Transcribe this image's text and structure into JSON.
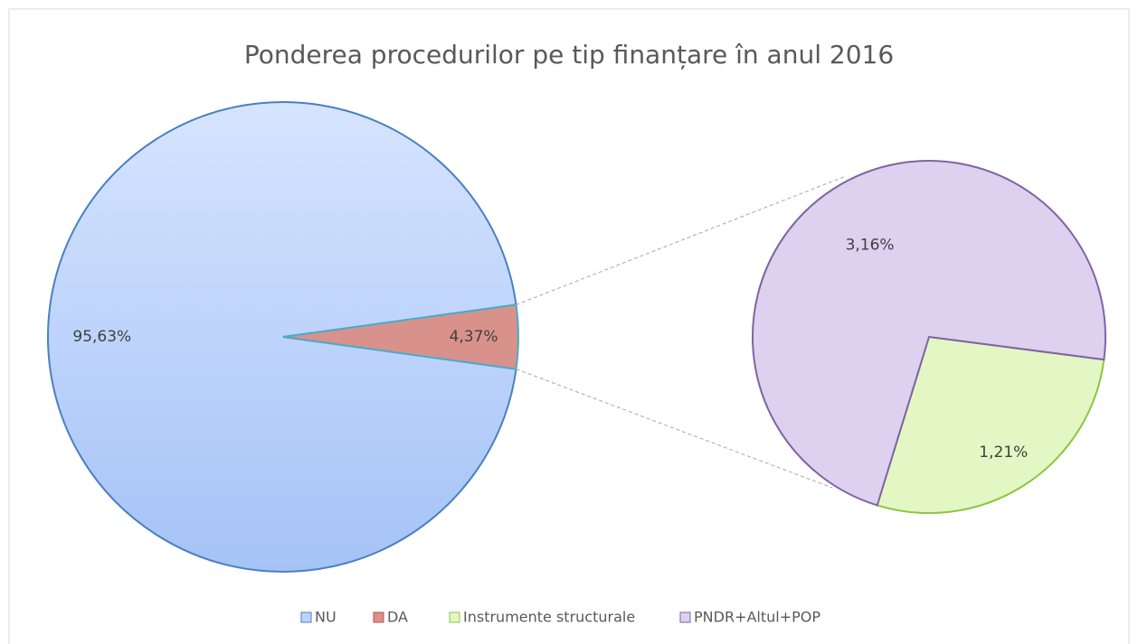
{
  "chart_data": {
    "type": "pie-of-pie",
    "title": "Ponderea procedurilor pe tip finanțare în anul 2016",
    "categories": [
      "NU",
      "DA"
    ],
    "values": [
      95.63,
      4.37
    ],
    "value_labels": [
      "95,63%",
      "4,37%"
    ],
    "colors": [
      "#bcd3fb",
      "#d9918b"
    ],
    "secondary": {
      "categories": [
        "Instrumente structurale",
        "PNDR+Altul+POP"
      ],
      "values": [
        1.21,
        3.16
      ],
      "value_labels": [
        "1,21%",
        "3,16%"
      ],
      "colors": [
        "#e3f7c4",
        "#ded0ef"
      ]
    },
    "legend": "bottom"
  }
}
